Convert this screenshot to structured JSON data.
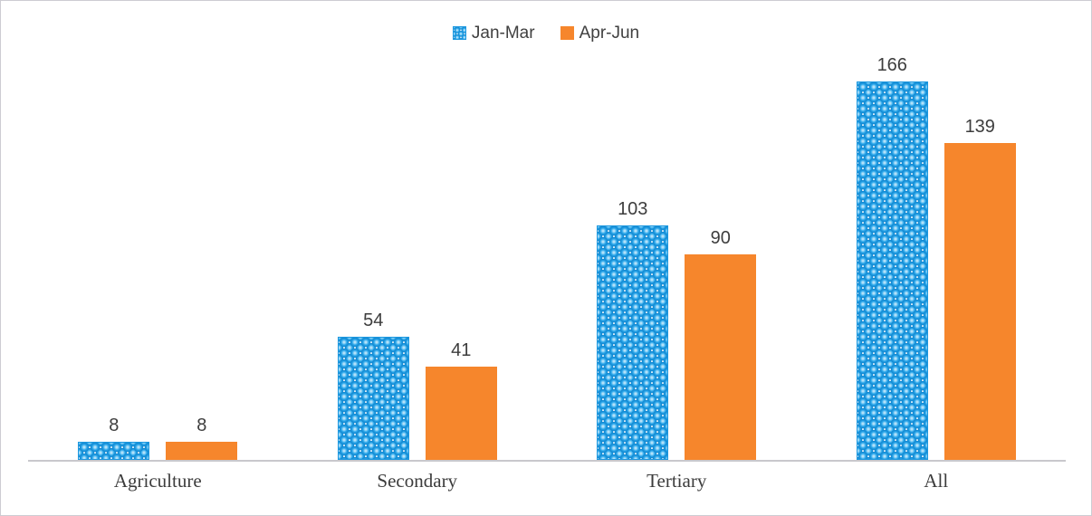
{
  "chart": {
    "legend": [
      {
        "label": "Jan-Mar",
        "swatch": "pattern-blue"
      },
      {
        "label": "Apr-Jun",
        "swatch": "solid-orange"
      }
    ],
    "colors": {
      "series_blue": "#1E9CE3",
      "series_orange": "#F6862C",
      "axis_line": "#C9C8CC",
      "label_text": "#3D3D3D"
    }
  },
  "chart_data": {
    "type": "bar",
    "title": "",
    "xlabel": "",
    "ylabel": "",
    "categories": [
      "Agriculture",
      "Secondary",
      "Tertiary",
      "All"
    ],
    "series": [
      {
        "name": "Jan-Mar",
        "values": [
          8,
          54,
          103,
          166
        ],
        "fill": "blue-sphere-pattern"
      },
      {
        "name": "Apr-Jun",
        "values": [
          8,
          41,
          90,
          139
        ],
        "fill": "solid-orange"
      }
    ],
    "data_labels": true,
    "legend_position": "top-center",
    "gridlines": false,
    "y_axis_visible": false,
    "ylim": [
      0,
      175
    ]
  }
}
